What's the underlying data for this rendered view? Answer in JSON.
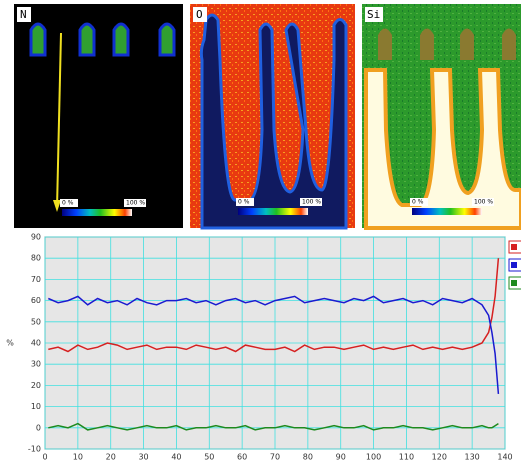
{
  "maps": [
    {
      "label": "N",
      "scale_min": "0 %",
      "scale_max": "100 %"
    },
    {
      "label": "O",
      "scale_min": "0 %",
      "scale_max": "100 %"
    },
    {
      "label": "Si",
      "scale_min": "0 %",
      "scale_max": "100 %"
    }
  ],
  "chart_data": {
    "type": "line",
    "y_label": "%",
    "x": [
      1,
      4,
      7,
      10,
      13,
      16,
      19,
      22,
      25,
      28,
      31,
      34,
      37,
      40,
      43,
      46,
      49,
      52,
      55,
      58,
      61,
      64,
      67,
      70,
      73,
      76,
      79,
      82,
      85,
      88,
      91,
      94,
      97,
      100,
      103,
      106,
      109,
      112,
      115,
      118,
      121,
      124,
      127,
      130,
      133,
      135,
      136,
      137,
      138
    ],
    "series": [
      {
        "color": "#d62020",
        "values": [
          37,
          38,
          36,
          39,
          37,
          38,
          40,
          39,
          37,
          38,
          39,
          37,
          38,
          38,
          37,
          39,
          38,
          37,
          38,
          36,
          39,
          38,
          37,
          37,
          38,
          36,
          39,
          37,
          38,
          38,
          37,
          38,
          39,
          37,
          38,
          37,
          38,
          39,
          37,
          38,
          37,
          38,
          37,
          38,
          40,
          45,
          52,
          62,
          80
        ]
      },
      {
        "color": "#1a1ad0",
        "values": [
          61,
          59,
          60,
          62,
          58,
          61,
          59,
          60,
          58,
          61,
          59,
          58,
          60,
          60,
          61,
          59,
          60,
          58,
          60,
          61,
          59,
          60,
          58,
          60,
          61,
          62,
          59,
          60,
          61,
          60,
          59,
          61,
          60,
          62,
          59,
          60,
          61,
          59,
          60,
          58,
          61,
          60,
          59,
          61,
          58,
          53,
          45,
          35,
          16
        ]
      },
      {
        "color": "#1e8a1e",
        "values": [
          0,
          1,
          0,
          2,
          -1,
          0,
          1,
          0,
          -1,
          0,
          1,
          0,
          0,
          1,
          -1,
          0,
          0,
          1,
          0,
          0,
          1,
          -1,
          0,
          0,
          1,
          0,
          0,
          -1,
          0,
          1,
          0,
          0,
          1,
          -1,
          0,
          0,
          1,
          0,
          0,
          -1,
          0,
          1,
          0,
          0,
          1,
          0,
          0,
          1,
          2
        ]
      }
    ],
    "xlim": [
      0,
      140
    ],
    "xticks": [
      0,
      10,
      20,
      30,
      40,
      50,
      60,
      70,
      80,
      90,
      100,
      110,
      120,
      130,
      140
    ],
    "ylim": [
      -10,
      90
    ],
    "yticks": [
      -10,
      0,
      10,
      20,
      30,
      40,
      50,
      60,
      70,
      80,
      90
    ],
    "grid": true
  }
}
